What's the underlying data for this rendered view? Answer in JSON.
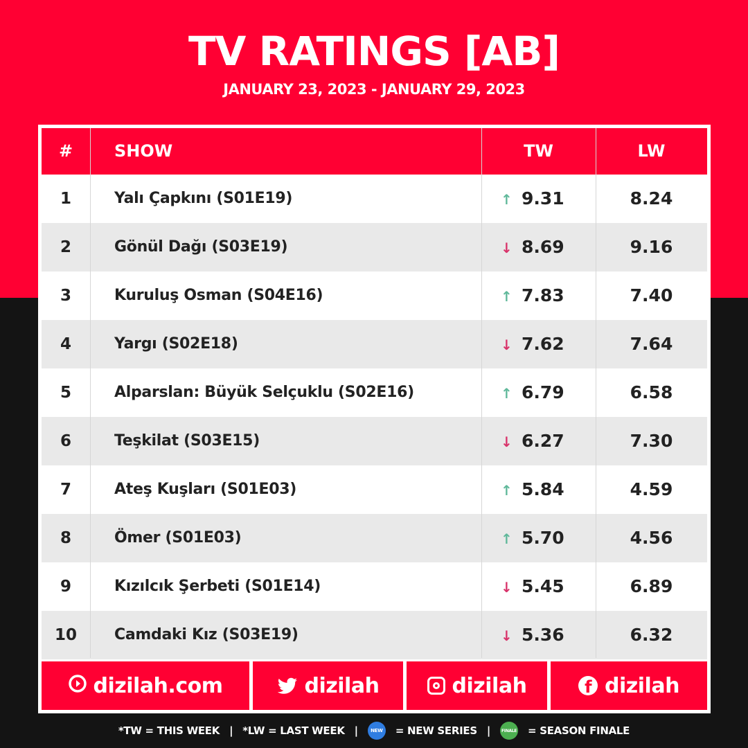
{
  "header": {
    "title": "TV RATINGS [AB]",
    "subtitle": "JANUARY 23, 2023 - JANUARY 29, 2023"
  },
  "table": {
    "columns": [
      "#",
      "SHOW",
      "TW",
      "LW"
    ],
    "rows": [
      {
        "rank": "1",
        "show": "Yalı Çapkını (S01E19)",
        "trend": "up",
        "tw": "9.31",
        "lw": "8.24"
      },
      {
        "rank": "2",
        "show": "Gönül Dağı (S03E19)",
        "trend": "down",
        "tw": "8.69",
        "lw": "9.16"
      },
      {
        "rank": "3",
        "show": "Kuruluş Osman (S04E16)",
        "trend": "up",
        "tw": "7.83",
        "lw": "7.40"
      },
      {
        "rank": "4",
        "show": "Yargı (S02E18)",
        "trend": "down",
        "tw": "7.62",
        "lw": "7.64"
      },
      {
        "rank": "5",
        "show": "Alparslan: Büyük Selçuklu (S02E16)",
        "trend": "up",
        "tw": "6.79",
        "lw": "6.58"
      },
      {
        "rank": "6",
        "show": "Teşkilat (S03E15)",
        "trend": "down",
        "tw": "6.27",
        "lw": "7.30"
      },
      {
        "rank": "7",
        "show": "Ateş Kuşları (S01E03)",
        "trend": "up",
        "tw": "5.84",
        "lw": "4.59"
      },
      {
        "rank": "8",
        "show": "Ömer (S01E03)",
        "trend": "up",
        "tw": "5.70",
        "lw": "4.56"
      },
      {
        "rank": "9",
        "show": "Kızılcık Şerbeti (S01E14)",
        "trend": "down",
        "tw": "5.45",
        "lw": "6.89"
      },
      {
        "rank": "10",
        "show": "Camdaki Kız (S03E19)",
        "trend": "down",
        "tw": "5.36",
        "lw": "6.32"
      }
    ]
  },
  "footer": {
    "website": "dizilah.com",
    "twitter": "dizilah",
    "instagram": "dizilah",
    "facebook": "dizilah"
  },
  "legend": {
    "tw": "*TW = THIS WEEK",
    "lw": "*LW = LAST WEEK",
    "new_badge": "NEW",
    "new_series": "= NEW SERIES",
    "finale_badge": "FINALE",
    "season_finale": "= SEASON FINALE",
    "separator": "|"
  },
  "colors": {
    "brand_red": "#ff0033",
    "dark": "#141414",
    "up": "#5fb89a",
    "down": "#d8336a"
  },
  "icons": {
    "up": "arrow-up-icon",
    "down": "arrow-down-icon"
  }
}
